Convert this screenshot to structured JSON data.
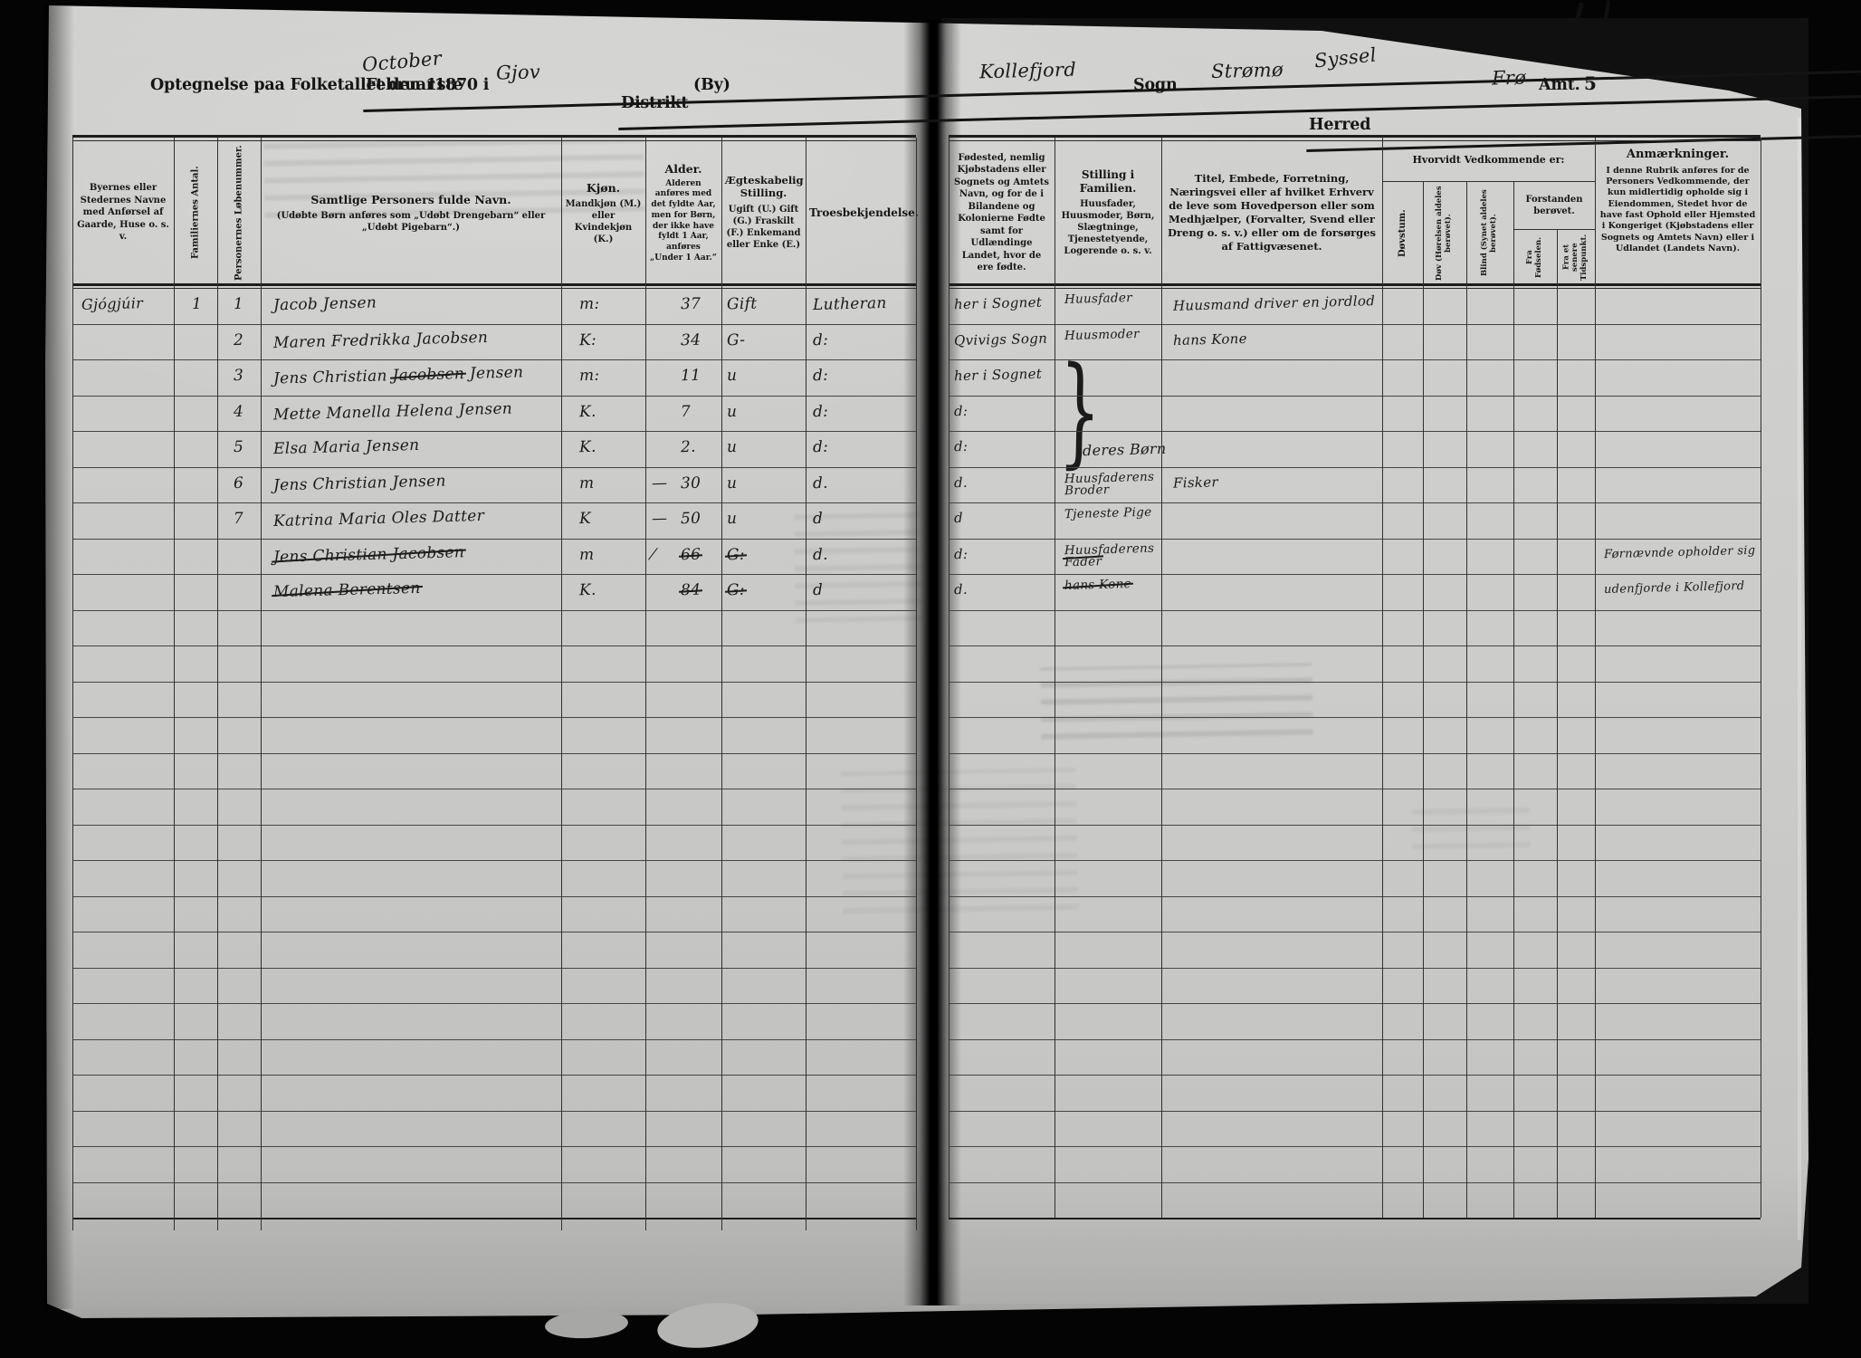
{
  "document": {
    "kind": "census-form-1870",
    "header": {
      "title": "Optegnelse paa Folketallet den 1ste",
      "month_printed_struck": "Februar",
      "month_handwritten": "October",
      "year_and_in": "1870 i",
      "district_value": "Gjov",
      "district_label_struck": "Distrikt",
      "district_label_suffix": "(By)",
      "parish_value": "Kollefjord",
      "parish_label": "Sogn",
      "herred_value": "Strømø",
      "herred_replacement": "Syssel",
      "herred_label_struck": "Herred",
      "amt_value": "Frø",
      "amt_label": "Amt.",
      "page_number": "5"
    },
    "table": {
      "headers": {
        "place": "Byernes eller Stedernes Navne med Anførsel af Gaarde, Huse o. s. v.",
        "family_count": "Familiernes Antal.",
        "person_number": "Personernes Løbenummer.",
        "name_title": "Samtlige Personers fulde Navn.",
        "name_sub": "(Udøbte Børn anføres som „Udøbt Drengebarn“ eller „Udøbt Pigebarn“.)",
        "sex_title": "Kjøn.",
        "sex_sub": "Mandkjøn (M.) eller Kvindekjøn (K.)",
        "age_title": "Alder.",
        "age_sub": "Alderen anføres med det fyldte Aar, men for Børn, der ikke have fyldt 1 Aar, anføres „Under 1 Aar.“",
        "marital_title": "Ægteskabelig Stilling.",
        "marital_sub": "Ugift (U.) Gift (G.) Fraskilt (F.) Enkemand eller Enke (E.)",
        "religion": "Troesbekjendelse.",
        "birthplace": "Fødested, nemlig Kjøbstadens eller Sognets og Amtets Navn, og for de i Bilandene og Kolonierne Fødte samt for Udlændinge Landet, hvor de ere fødte.",
        "family_position_title": "Stilling i Familien.",
        "family_position_sub": "Huusfader, Huusmoder, Børn, Slægtninge, Tjenestetyende, Logerende o. s. v.",
        "occupation": "Titel, Embede, Forretning, Næringsvei eller af hvilket Erhverv de leve som Hovedperson eller som Medhjælper, (Forvalter, Svend eller Dreng o. s. v.) eller om de forsørges af Fattigvæsenet.",
        "disability_group": "Hvorvidt Vedkommende er:",
        "deaf_mute": "Døvstum.",
        "deaf": "Døv (Hørelsen aldeles berøvet).",
        "blind": "Blind (Synet aldeles berøvet).",
        "insanity_group": "Forstanden berøvet.",
        "insane_from_birth": "Fra Fødselen.",
        "insane_later": "Fra et senere Tidspunkt.",
        "remarks_title": "Anmærkninger.",
        "remarks_body": "I denne Rubrik anføres for de Personers Vedkommende, der kun midlertidig opholde sig i Eiendommen, Stedet hvor de have fast Ophold eller Hjemsted i Kongeriget (Kjøbstadens eller Sognets og Amtets Navn) eller i Udlandet (Landets Navn)."
      },
      "brace_label": "deres Børn",
      "rows": [
        {
          "place": "Gjógjúir",
          "fam": "1",
          "num": "1",
          "name": [
            {
              "t": "Jacob Jensen",
              "s": false
            }
          ],
          "sex": "m:",
          "age_pre": "",
          "age": "37",
          "age_struck": false,
          "marital": "Gift",
          "marital_struck": false,
          "religion": "Lutheran",
          "birthplace": "her i Sognet",
          "position": "Huusfader",
          "position_struck": false,
          "occupation": "Huusmand driver en jordlod",
          "remark": ""
        },
        {
          "place": "",
          "fam": "",
          "num": "2",
          "name": [
            {
              "t": "Maren Fredrikka Jacobsen",
              "s": false
            }
          ],
          "sex": "K:",
          "age_pre": "",
          "age": "34",
          "age_struck": false,
          "marital": "G-",
          "marital_struck": false,
          "religion": "d:",
          "birthplace": "Qvivigs Sogn",
          "position": "Huusmoder",
          "position_struck": false,
          "occupation": "hans Kone",
          "remark": ""
        },
        {
          "place": "",
          "fam": "",
          "num": "3",
          "name": [
            {
              "t": "Jens Christian ",
              "s": false
            },
            {
              "t": "Jacobsen",
              "s": true
            },
            {
              "t": " Jensen",
              "s": false
            }
          ],
          "sex": "m:",
          "age_pre": "",
          "age": "11",
          "age_struck": false,
          "marital": "u",
          "marital_struck": false,
          "religion": "d:",
          "birthplace": "her i Sognet",
          "position": "",
          "position_struck": false,
          "occupation": "",
          "remark": ""
        },
        {
          "place": "",
          "fam": "",
          "num": "4",
          "name": [
            {
              "t": "Mette Manella Helena Jensen",
              "s": false
            }
          ],
          "sex": "K.",
          "age_pre": "",
          "age": "7",
          "age_struck": false,
          "marital": "u",
          "marital_struck": false,
          "religion": "d:",
          "birthplace": "d:",
          "position": "",
          "position_struck": false,
          "occupation": "",
          "remark": ""
        },
        {
          "place": "",
          "fam": "",
          "num": "5",
          "name": [
            {
              "t": "Elsa Maria Jensen",
              "s": false
            }
          ],
          "sex": "K.",
          "age_pre": "",
          "age": "2.",
          "age_struck": false,
          "marital": "u",
          "marital_struck": false,
          "religion": "d:",
          "birthplace": "d:",
          "position": "",
          "position_struck": false,
          "occupation": "",
          "remark": ""
        },
        {
          "place": "",
          "fam": "",
          "num": "6",
          "name": [
            {
              "t": "Jens Christian Jensen",
              "s": false
            }
          ],
          "sex": "m",
          "age_pre": "—",
          "age": "30",
          "age_struck": false,
          "marital": "u",
          "marital_struck": false,
          "religion": "d.",
          "birthplace": "d.",
          "position": "Huusfaderens\nBroder",
          "position_struck": false,
          "occupation": "Fisker",
          "remark": ""
        },
        {
          "place": "",
          "fam": "",
          "num": "7",
          "name": [
            {
              "t": "Katrina Maria Oles Datter",
              "s": false
            }
          ],
          "sex": "K",
          "age_pre": "—",
          "age": "50",
          "age_struck": false,
          "marital": "u",
          "marital_struck": false,
          "religion": "d",
          "birthplace": "d",
          "position": "Tjeneste Pige",
          "position_struck": false,
          "occupation": "",
          "remark": ""
        },
        {
          "place": "",
          "fam": "",
          "num": "",
          "name": [
            {
              "t": "Jens Christian Jacobsen",
              "s": true
            }
          ],
          "sex": "m",
          "age_pre": "⁄",
          "age": "66",
          "age_struck": true,
          "marital": "G:",
          "marital_struck": true,
          "religion": "d.",
          "birthplace": "d:",
          "position": "Huusfaderens\nFader",
          "position_struck": true,
          "occupation": "",
          "remark": "Førnævnde opholder sig"
        },
        {
          "place": "",
          "fam": "",
          "num": "",
          "name": [
            {
              "t": "Malena Berentsen",
              "s": true
            }
          ],
          "sex": "K.",
          "age_pre": "",
          "age": "84",
          "age_struck": true,
          "marital": "G:",
          "marital_struck": true,
          "religion": "d",
          "birthplace": "d.",
          "position": "hans Kone",
          "position_struck": true,
          "occupation": "",
          "remark": "udenfjorde i Kollefjord"
        }
      ]
    }
  }
}
